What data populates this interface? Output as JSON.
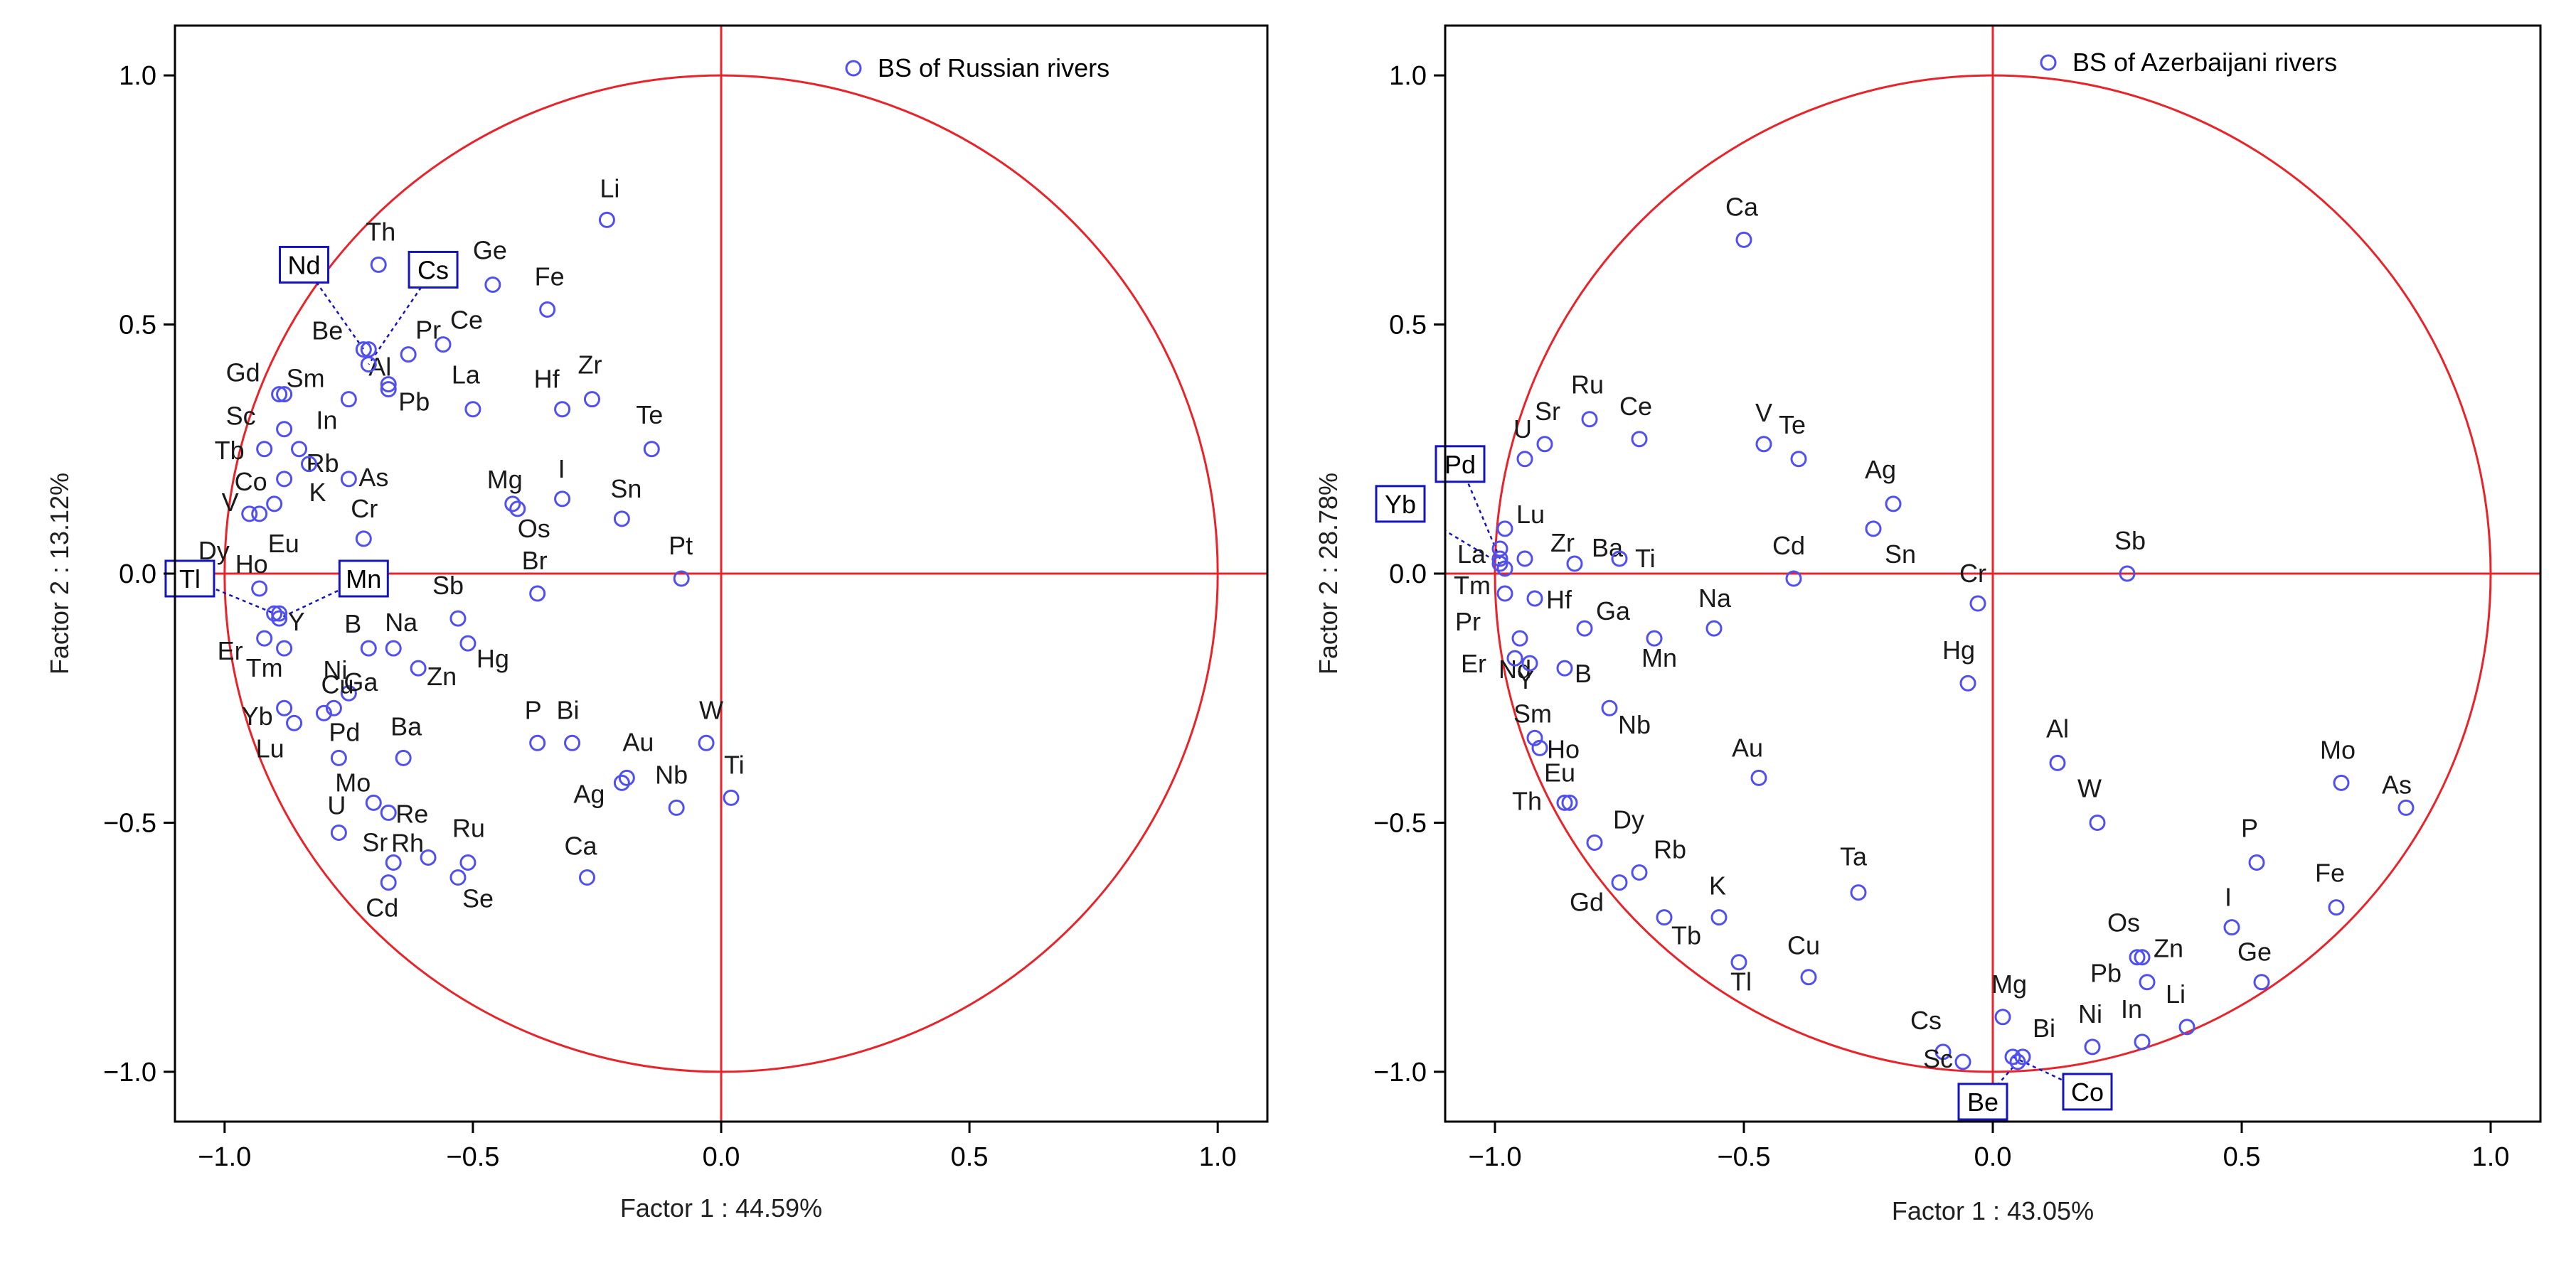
{
  "colors": {
    "circle": "#e8242b",
    "axis_line": "#e8242b",
    "marker": "#5050f0",
    "frame": "#000000",
    "box": "#1515c0"
  },
  "chart_data": [
    {
      "type": "scatter",
      "title": "",
      "xlabel": "Factor 1 : 44.59%",
      "ylabel": "Factor 2 : 13.12%",
      "xlim": [
        -1.1,
        1.1
      ],
      "ylim": [
        -1.1,
        1.1
      ],
      "xticks": [
        -1.0,
        -0.5,
        0.0,
        0.5,
        1.0
      ],
      "yticks": [
        -1.0,
        -0.5,
        0.0,
        0.5,
        1.0
      ],
      "xtick_labels": [
        "−1.0",
        "−0.5",
        "0.0",
        "0.5",
        "1.0"
      ],
      "ytick_labels": [
        "−1.0",
        "−0.5",
        "0.0",
        "0.5",
        "1.0"
      ],
      "legend": {
        "label": "BS of Russian rivers",
        "position": "top-right"
      },
      "unit_circle": true,
      "points": [
        {
          "label": "Li",
          "x": -0.23,
          "y": 0.71
        },
        {
          "label": "Th",
          "x": -0.69,
          "y": 0.62
        },
        {
          "label": "Ge",
          "x": -0.46,
          "y": 0.58
        },
        {
          "label": "Fe",
          "x": -0.35,
          "y": 0.53
        },
        {
          "label": "Be",
          "x": -0.71,
          "y": 0.45
        },
        {
          "label": "Pr",
          "x": -0.63,
          "y": 0.44
        },
        {
          "label": "Ce",
          "x": -0.56,
          "y": 0.46
        },
        {
          "label": "Gd",
          "x": -0.88,
          "y": 0.36
        },
        {
          "label": "Sm",
          "x": -0.89,
          "y": 0.36
        },
        {
          "label": "Al",
          "x": -0.67,
          "y": 0.38
        },
        {
          "label": "Pb",
          "x": -0.67,
          "y": 0.37
        },
        {
          "label": "La",
          "x": -0.5,
          "y": 0.33
        },
        {
          "label": "Hf",
          "x": -0.32,
          "y": 0.33
        },
        {
          "label": "Zr",
          "x": -0.26,
          "y": 0.35
        },
        {
          "label": "In",
          "x": -0.75,
          "y": 0.35
        },
        {
          "label": "Te",
          "x": -0.14,
          "y": 0.25
        },
        {
          "label": "Sc",
          "x": -0.88,
          "y": 0.29
        },
        {
          "label": "Tb",
          "x": -0.92,
          "y": 0.25
        },
        {
          "label": "Rb",
          "x": -0.85,
          "y": 0.25
        },
        {
          "label": "K",
          "x": -0.83,
          "y": 0.22
        },
        {
          "label": "As",
          "x": -0.75,
          "y": 0.19
        },
        {
          "label": "Co",
          "x": -0.88,
          "y": 0.19
        },
        {
          "label": "Mg",
          "x": -0.42,
          "y": 0.14
        },
        {
          "label": "Os",
          "x": -0.41,
          "y": 0.13
        },
        {
          "label": "I",
          "x": -0.32,
          "y": 0.15
        },
        {
          "label": "Sn",
          "x": -0.2,
          "y": 0.11
        },
        {
          "label": "V",
          "x": -0.9,
          "y": 0.14
        },
        {
          "label": "Eu",
          "x": -0.93,
          "y": 0.12
        },
        {
          "label": "Cr",
          "x": -0.72,
          "y": 0.07
        },
        {
          "label": "Dy",
          "x": -0.95,
          "y": 0.12
        },
        {
          "label": "Ho",
          "x": -0.93,
          "y": -0.03
        },
        {
          "label": "Br",
          "x": -0.37,
          "y": -0.04
        },
        {
          "label": "Pt",
          "x": -0.08,
          "y": -0.01
        },
        {
          "label": "Sb",
          "x": -0.53,
          "y": -0.09
        },
        {
          "label": "Y",
          "x": -0.89,
          "y": -0.08
        },
        {
          "label": "Er",
          "x": -0.92,
          "y": -0.13
        },
        {
          "label": "B",
          "x": -0.71,
          "y": -0.15
        },
        {
          "label": "Na",
          "x": -0.66,
          "y": -0.15
        },
        {
          "label": "Hg",
          "x": -0.51,
          "y": -0.14
        },
        {
          "label": "Tm",
          "x": -0.88,
          "y": -0.15
        },
        {
          "label": "Zn",
          "x": -0.61,
          "y": -0.19
        },
        {
          "label": "Ni",
          "x": -0.75,
          "y": -0.24
        },
        {
          "label": "Ga",
          "x": -0.78,
          "y": -0.27
        },
        {
          "label": "Cu",
          "x": -0.8,
          "y": -0.28
        },
        {
          "label": "Yb",
          "x": -0.88,
          "y": -0.27
        },
        {
          "label": "Lu",
          "x": -0.86,
          "y": -0.3
        },
        {
          "label": "Pd",
          "x": -0.77,
          "y": -0.37
        },
        {
          "label": "Ba",
          "x": -0.64,
          "y": -0.37
        },
        {
          "label": "P",
          "x": -0.37,
          "y": -0.34
        },
        {
          "label": "Bi",
          "x": -0.3,
          "y": -0.34
        },
        {
          "label": "W",
          "x": -0.03,
          "y": -0.34
        },
        {
          "label": "Au",
          "x": -0.19,
          "y": -0.41
        },
        {
          "label": "Ag",
          "x": -0.2,
          "y": -0.42
        },
        {
          "label": "Nb",
          "x": -0.09,
          "y": -0.47
        },
        {
          "label": "Ti",
          "x": 0.02,
          "y": -0.45
        },
        {
          "label": "Mo",
          "x": -0.7,
          "y": -0.46
        },
        {
          "label": "Re",
          "x": -0.67,
          "y": -0.48
        },
        {
          "label": "U",
          "x": -0.77,
          "y": -0.52
        },
        {
          "label": "Sr",
          "x": -0.66,
          "y": -0.58
        },
        {
          "label": "Rh",
          "x": -0.59,
          "y": -0.57
        },
        {
          "label": "Ru",
          "x": -0.51,
          "y": -0.58
        },
        {
          "label": "Cd",
          "x": -0.67,
          "y": -0.62
        },
        {
          "label": "Se",
          "x": -0.53,
          "y": -0.61
        },
        {
          "label": "Ca",
          "x": -0.27,
          "y": -0.61
        },
        {
          "label": "Cs",
          "x": -0.71,
          "y": 0.42
        },
        {
          "label": "Nd",
          "x": -0.72,
          "y": 0.45
        },
        {
          "label": "Mn",
          "x": -0.89,
          "y": -0.09
        },
        {
          "label": "Tl",
          "x": -0.9,
          "y": -0.08
        }
      ],
      "boxed_labels": [
        {
          "label": "Nd",
          "x": -0.84,
          "y": 0.62
        },
        {
          "label": "Cs",
          "x": -0.58,
          "y": 0.61
        },
        {
          "label": "Tl",
          "x": -1.07,
          "y": -0.01
        },
        {
          "label": "Mn",
          "x": -0.72,
          "y": -0.01
        }
      ]
    },
    {
      "type": "scatter",
      "title": "",
      "xlabel": "Factor 1 : 43.05%",
      "ylabel": "Factor 2 : 28.78%",
      "xlim": [
        -1.1,
        1.1
      ],
      "ylim": [
        -1.1,
        1.1
      ],
      "xticks": [
        -1.0,
        -0.5,
        0.0,
        0.5,
        1.0
      ],
      "yticks": [
        -1.0,
        -0.5,
        0.0,
        0.5,
        1.0
      ],
      "xtick_labels": [
        "−1.0",
        "−0.5",
        "0.0",
        "0.5",
        "1.0"
      ],
      "ytick_labels": [
        "−1.0",
        "−0.5",
        "0.0",
        "0.5",
        "1.0"
      ],
      "legend": {
        "label": "BS of Azerbaijani rivers",
        "position": "top-right"
      },
      "unit_circle": true,
      "points": [
        {
          "label": "Ca",
          "x": -0.5,
          "y": 0.67
        },
        {
          "label": "Ru",
          "x": -0.81,
          "y": 0.31
        },
        {
          "label": "Sr",
          "x": -0.9,
          "y": 0.26
        },
        {
          "label": "U",
          "x": -0.94,
          "y": 0.23
        },
        {
          "label": "Ce",
          "x": -0.71,
          "y": 0.27
        },
        {
          "label": "V",
          "x": -0.46,
          "y": 0.26
        },
        {
          "label": "Te",
          "x": -0.39,
          "y": 0.23
        },
        {
          "label": "Lu",
          "x": -0.98,
          "y": 0.09
        },
        {
          "label": "Ag",
          "x": -0.2,
          "y": 0.14
        },
        {
          "label": "Sn",
          "x": -0.24,
          "y": 0.09
        },
        {
          "label": "La",
          "x": -0.99,
          "y": 0.05
        },
        {
          "label": "Zr",
          "x": -0.94,
          "y": 0.03
        },
        {
          "label": "Ba",
          "x": -0.84,
          "y": 0.02
        },
        {
          "label": "Ti",
          "x": -0.75,
          "y": 0.03
        },
        {
          "label": "Tm",
          "x": -0.98,
          "y": 0.01
        },
        {
          "label": "Cd",
          "x": -0.4,
          "y": -0.01
        },
        {
          "label": "Sb",
          "x": 0.27,
          "y": 0.0
        },
        {
          "label": "Pr",
          "x": -0.98,
          "y": -0.04
        },
        {
          "label": "Hf",
          "x": -0.92,
          "y": -0.05
        },
        {
          "label": "Cr",
          "x": -0.03,
          "y": -0.06
        },
        {
          "label": "Ga",
          "x": -0.82,
          "y": -0.11
        },
        {
          "label": "Na",
          "x": -0.56,
          "y": -0.11
        },
        {
          "label": "Nd",
          "x": -0.95,
          "y": -0.13
        },
        {
          "label": "Mn",
          "x": -0.68,
          "y": -0.13
        },
        {
          "label": "Er",
          "x": -0.96,
          "y": -0.17
        },
        {
          "label": "Y",
          "x": -0.93,
          "y": -0.18
        },
        {
          "label": "B",
          "x": -0.86,
          "y": -0.19
        },
        {
          "label": "Hg",
          "x": -0.05,
          "y": -0.22
        },
        {
          "label": "Nb",
          "x": -0.77,
          "y": -0.27
        },
        {
          "label": "Sm",
          "x": -0.92,
          "y": -0.33
        },
        {
          "label": "Ho",
          "x": -0.91,
          "y": -0.35
        },
        {
          "label": "Al",
          "x": 0.13,
          "y": -0.38
        },
        {
          "label": "Au",
          "x": -0.47,
          "y": -0.41
        },
        {
          "label": "Mo",
          "x": 0.7,
          "y": -0.42
        },
        {
          "label": "As",
          "x": 0.83,
          "y": -0.47
        },
        {
          "label": "Th",
          "x": -0.86,
          "y": -0.46
        },
        {
          "label": "Eu",
          "x": -0.85,
          "y": -0.46
        },
        {
          "label": "W",
          "x": 0.21,
          "y": -0.5
        },
        {
          "label": "Dy",
          "x": -0.8,
          "y": -0.54
        },
        {
          "label": "P",
          "x": 0.53,
          "y": -0.58
        },
        {
          "label": "Rb",
          "x": -0.71,
          "y": -0.6
        },
        {
          "label": "Gd",
          "x": -0.75,
          "y": -0.62
        },
        {
          "label": "Ta",
          "x": -0.27,
          "y": -0.64
        },
        {
          "label": "Fe",
          "x": 0.69,
          "y": -0.67
        },
        {
          "label": "Tb",
          "x": -0.66,
          "y": -0.69
        },
        {
          "label": "K",
          "x": -0.55,
          "y": -0.69
        },
        {
          "label": "I",
          "x": 0.48,
          "y": -0.71
        },
        {
          "label": "Os",
          "x": 0.29,
          "y": -0.77
        },
        {
          "label": "Zn",
          "x": 0.3,
          "y": -0.77
        },
        {
          "label": "Pb",
          "x": 0.31,
          "y": -0.82
        },
        {
          "label": "Ge",
          "x": 0.54,
          "y": -0.82
        },
        {
          "label": "Tl",
          "x": -0.51,
          "y": -0.78
        },
        {
          "label": "Cu",
          "x": -0.37,
          "y": -0.81
        },
        {
          "label": "Li",
          "x": 0.39,
          "y": -0.91
        },
        {
          "label": "Mg",
          "x": 0.02,
          "y": -0.89
        },
        {
          "label": "Ni",
          "x": 0.2,
          "y": -0.95
        },
        {
          "label": "In",
          "x": 0.3,
          "y": -0.94
        },
        {
          "label": "Cs",
          "x": -0.1,
          "y": -0.96
        },
        {
          "label": "Bi",
          "x": 0.06,
          "y": -0.97
        },
        {
          "label": "Sc",
          "x": -0.06,
          "y": -0.98
        },
        {
          "label": "Be",
          "x": 0.05,
          "y": -0.98
        },
        {
          "label": "Co",
          "x": 0.04,
          "y": -0.97
        },
        {
          "label": "Pd",
          "x": -0.99,
          "y": 0.03
        },
        {
          "label": "Yb",
          "x": -0.99,
          "y": 0.02
        }
      ],
      "boxed_labels": [
        {
          "label": "Pd",
          "x": -1.07,
          "y": 0.22
        },
        {
          "label": "Yb",
          "x": -1.19,
          "y": 0.14
        },
        {
          "label": "Be",
          "x": -0.02,
          "y": -1.06
        },
        {
          "label": "Co",
          "x": 0.19,
          "y": -1.04
        }
      ]
    }
  ]
}
